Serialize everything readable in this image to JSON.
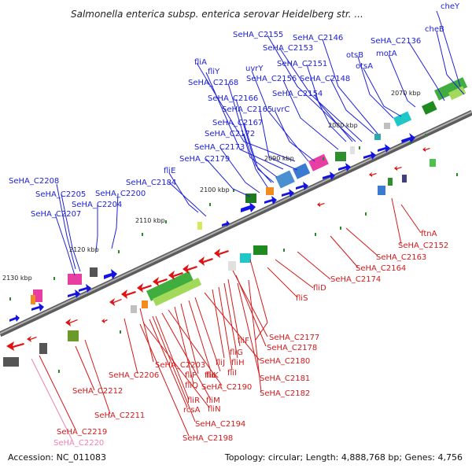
{
  "title": "Salmonella enterica subsp. enterica serovar Heidelberg str. ...",
  "footer": {
    "accession": "Accession: NC_011083",
    "summary": "Topology: circular; Length: 4,888,768 bp; Genes: 4,756"
  },
  "colors": {
    "forward_label": "#1e22d8",
    "reverse_label": "#d41a1a",
    "backbone": "#808080"
  },
  "ticks": [
    "2070 kbp",
    "2080 kbp",
    "2090 kbp",
    "2100 kbp",
    "2110 kbp",
    "2120 kbp",
    "2130 kbp"
  ],
  "forward_labels": [
    "cheY",
    "cheB",
    "SeHA_C2155",
    "SeHA_C2146",
    "SeHA_C2153",
    "SeHA_C2136",
    "motA",
    "otsB",
    "otsA",
    "fliA",
    "uvrY",
    "SeHA_C2151",
    "fliY",
    "SeHA_C2156",
    "SeHA_C2148",
    "SeHA_C2168",
    "SeHA_C2154",
    "SeHA_C2166",
    "uvrC",
    "SeHA_C2165",
    "SeHA_C2167",
    "SeHA_C2172",
    "SeHA_C2173",
    "SeHA_C2179",
    "fliE",
    "SeHA_C2184",
    "SeHA_C2208",
    "SeHA_C2205",
    "SeHA_C2200",
    "SeHA_C2204",
    "SeHA_C2207"
  ],
  "reverse_labels": [
    "ftnA",
    "SeHA_C2152",
    "SeHA_C2163",
    "SeHA_C2164",
    "SeHA_C2174",
    "fliD",
    "fliS",
    "SeHA_C2177",
    "fliF",
    "SeHA_C2178",
    "fliG",
    "fliH",
    "fliI",
    "fliJ",
    "SeHA_C2180",
    "SeHA_C2203",
    "fliK",
    "fliL",
    "fliP",
    "SeHA_C2206",
    "fliQ",
    "SeHA_C2190",
    "SeHA_C2181",
    "fliM",
    "fliR",
    "SeHA_C2182",
    "SeHA_C2212",
    "rcsA",
    "fliN",
    "SeHA_C2211",
    "SeHA_C2194",
    "SeHA_C2198",
    "SeHA_C2219"
  ],
  "other_labels": [
    "SeHA_C2220"
  ]
}
